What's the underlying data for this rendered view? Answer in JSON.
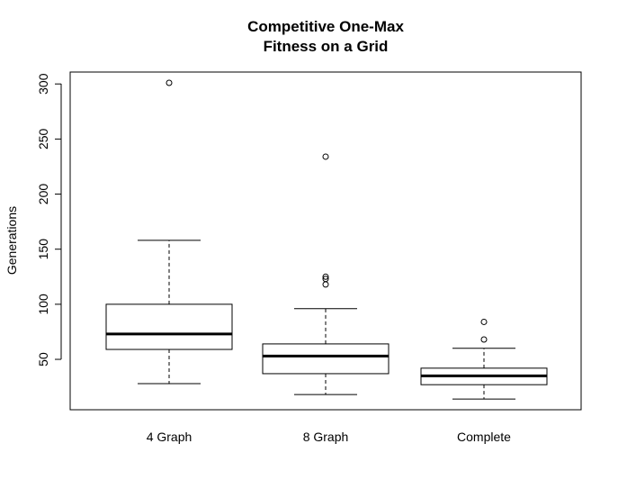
{
  "chart_data": {
    "type": "boxplot",
    "title_lines": [
      "Competitive One-Max",
      "Fitness on a Grid"
    ],
    "xlabel": "",
    "ylabel": "Generations",
    "ylim": [
      10,
      310
    ],
    "yticks": [
      50,
      100,
      150,
      200,
      250,
      300
    ],
    "categories": [
      "4 Graph",
      "8 Graph",
      "Complete"
    ],
    "boxes": [
      {
        "label": "4 Graph",
        "whisker_low": 28,
        "q1": 59,
        "median": 73,
        "q3": 100,
        "whisker_high": 158,
        "outliers": [
          301
        ]
      },
      {
        "label": "8 Graph",
        "whisker_low": 18,
        "q1": 37,
        "median": 53,
        "q3": 64,
        "whisker_high": 96,
        "outliers": [
          118,
          123,
          125,
          234
        ]
      },
      {
        "label": "Complete",
        "whisker_low": 14,
        "q1": 27,
        "median": 35,
        "q3": 42,
        "whisker_high": 60,
        "outliers": [
          68,
          84
        ]
      }
    ],
    "grid": false,
    "legend": "none"
  }
}
